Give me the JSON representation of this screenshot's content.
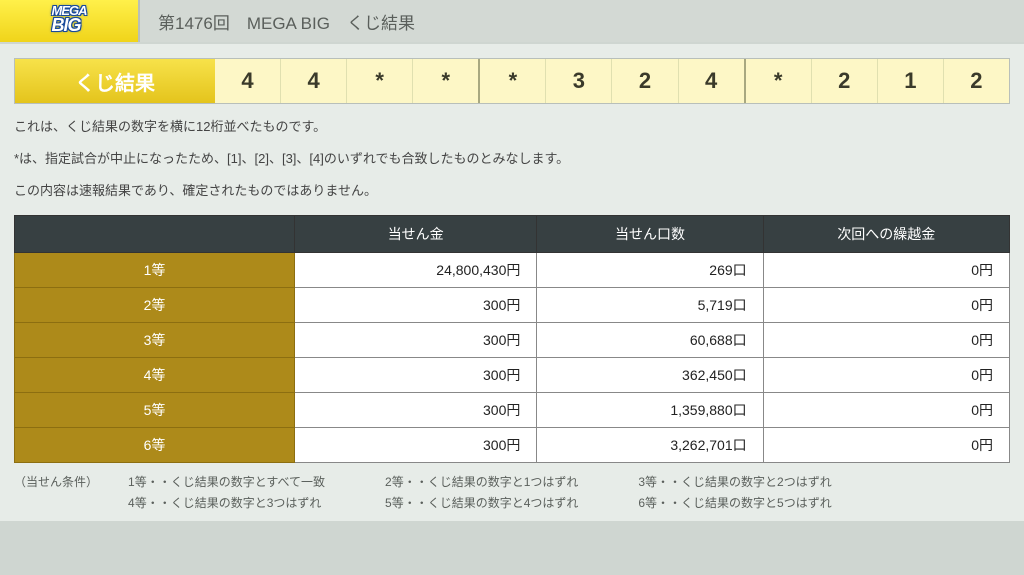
{
  "logo": {
    "line1": "MEGA",
    "line2": "BIG"
  },
  "topbar_title": "第1476回　MEGA BIG　くじ結果",
  "result_label": "くじ結果",
  "result_numbers": [
    "4",
    "4",
    "*",
    "*",
    "*",
    "3",
    "2",
    "4",
    "*",
    "2",
    "1",
    "2"
  ],
  "notes": [
    "これは、くじ結果の数字を横に12桁並べたものです。",
    "*は、指定試合が中止になったため、[1]、[2]、[3]、[4]のいずれでも合致したものとみなします。",
    "この内容は速報結果であり、確定されたものではありません。"
  ],
  "table": {
    "headers": [
      "",
      "当せん金",
      "当せん口数",
      "次回への繰越金"
    ],
    "rows": [
      {
        "rank": "1等",
        "prize": "24,800,430円",
        "count": "269口",
        "carry": "0円"
      },
      {
        "rank": "2等",
        "prize": "300円",
        "count": "5,719口",
        "carry": "0円"
      },
      {
        "rank": "3等",
        "prize": "300円",
        "count": "60,688口",
        "carry": "0円"
      },
      {
        "rank": "4等",
        "prize": "300円",
        "count": "362,450口",
        "carry": "0円"
      },
      {
        "rank": "5等",
        "prize": "300円",
        "count": "1,359,880口",
        "carry": "0円"
      },
      {
        "rank": "6等",
        "prize": "300円",
        "count": "3,262,701口",
        "carry": "0円"
      }
    ]
  },
  "conditions": {
    "label": "（当せん条件）",
    "items": [
      "1等・・くじ結果の数字とすべて一致",
      "2等・・くじ結果の数字と1つはずれ",
      "3等・・くじ結果の数字と2つはずれ",
      "4等・・くじ結果の数字と3つはずれ",
      "5等・・くじ結果の数字と4つはずれ",
      "6等・・くじ結果の数字と5つはずれ"
    ]
  },
  "colors": {
    "page_bg": "#cfd6d1",
    "content_bg": "#e7ece8",
    "header_bg": "#374042",
    "rank_bg": "#ad8a1a",
    "number_bg": "#fdf7c6",
    "gold_grad_top": "#f7e24a",
    "gold_grad_bottom": "#e4c41c"
  }
}
